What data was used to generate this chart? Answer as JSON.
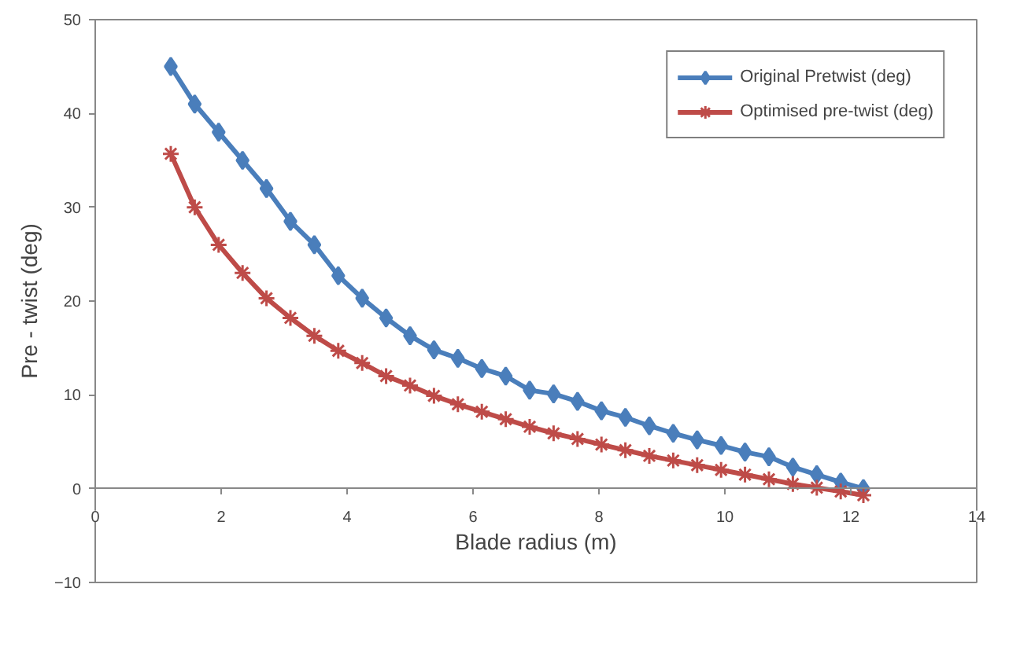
{
  "chart_data": {
    "type": "line",
    "xlabel": "Blade radius (m)",
    "ylabel": "Pre - twist (deg)",
    "x": [
      1.2,
      1.58,
      1.96,
      2.34,
      2.72,
      3.1,
      3.48,
      3.86,
      4.24,
      4.62,
      5.0,
      5.38,
      5.76,
      6.14,
      6.52,
      6.9,
      7.28,
      7.66,
      8.04,
      8.42,
      8.8,
      9.18,
      9.56,
      9.94,
      10.32,
      10.7,
      11.08,
      11.46,
      11.84,
      12.2
    ],
    "series": [
      {
        "name": "Original Pretwist (deg)",
        "color": "#4a7ebb",
        "marker": "diamond",
        "values": [
          45,
          41,
          38,
          35,
          32,
          28.5,
          26,
          22.7,
          20.3,
          18.2,
          16.3,
          14.8,
          13.9,
          12.8,
          12.0,
          10.5,
          10.1,
          9.3,
          8.3,
          7.6,
          6.7,
          5.9,
          5.2,
          4.6,
          3.9,
          3.4,
          2.3,
          1.5,
          0.7,
          0
        ]
      },
      {
        "name": "Optimised pre-twist (deg)",
        "color": "#be4b48",
        "marker": "cross",
        "values": [
          35.7,
          30,
          26,
          23,
          20.3,
          18.2,
          16.3,
          14.7,
          13.4,
          12.0,
          11.0,
          9.9,
          9.0,
          8.2,
          7.4,
          6.6,
          5.9,
          5.3,
          4.7,
          4.1,
          3.5,
          3.0,
          2.5,
          2.0,
          1.5,
          1.0,
          0.5,
          0.1,
          -0.3,
          -0.7
        ]
      }
    ],
    "xlim": [
      0,
      14
    ],
    "ylim": [
      -10,
      50
    ],
    "xticks": [
      0,
      2,
      4,
      6,
      8,
      10,
      12,
      14
    ],
    "yticks": [
      -10,
      0,
      10,
      20,
      30,
      40,
      50
    ],
    "grid": false,
    "legend": "top right",
    "line_style": "solid"
  }
}
